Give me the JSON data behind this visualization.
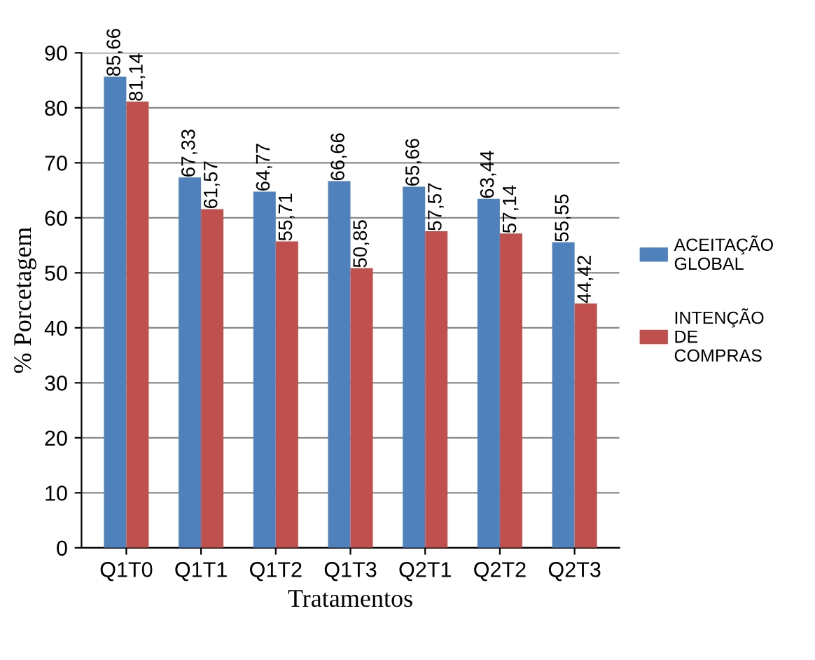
{
  "chart_data": {
    "type": "bar",
    "xlabel": "Tratamentos",
    "ylabel": "% Porcetagem",
    "categories": [
      "Q1T0",
      "Q1T1",
      "Q1T2",
      "Q1T3",
      "Q2T1",
      "Q2T2",
      "Q2T3"
    ],
    "series": [
      {
        "name": "ACEITAÇÃO GLOBAL",
        "color": "#4f81bd",
        "values": [
          85.66,
          67.33,
          64.77,
          66.66,
          65.66,
          63.44,
          55.55
        ],
        "value_labels": [
          "85,66",
          "67,33",
          "64,77",
          "66,66",
          "65,66",
          "63,44",
          "55,55"
        ]
      },
      {
        "name": "INTENÇÃO DE COMPRAS",
        "color": "#c0504d",
        "values": [
          81.14,
          61.57,
          55.71,
          50.85,
          57.57,
          57.14,
          44.42
        ],
        "value_labels": [
          "81,14",
          "61,57",
          "55,71",
          "50,85",
          "57,57",
          "57,14",
          "44,42"
        ]
      }
    ],
    "ylim": [
      0,
      90
    ],
    "yticks": [
      0,
      10,
      20,
      30,
      40,
      50,
      60,
      70,
      80,
      90
    ],
    "grid": "y",
    "legend": "right"
  }
}
